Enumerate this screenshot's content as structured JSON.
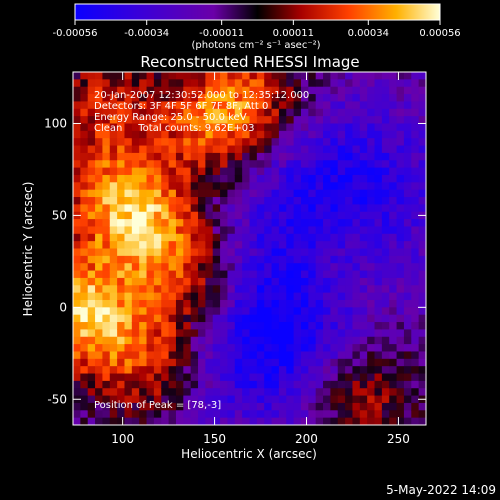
{
  "chart_data": {
    "type": "heatmap",
    "title": "Reconstructed RHESSI Image",
    "xlabel": "Heliocentric X (arcsec)",
    "ylabel": "Heliocentric Y (arcsec)",
    "xlim": [
      73,
      265
    ],
    "ylim": [
      -64,
      128
    ],
    "x_ticks": [
      100,
      150,
      200,
      250
    ],
    "y_ticks": [
      -50,
      0,
      50,
      100
    ],
    "colorbar": {
      "unit": "(photons cm⁻² s⁻¹ asec⁻²)",
      "range": [
        -0.00056,
        0.00056
      ],
      "ticks": [
        "-0.00056",
        "-0.00034",
        "-0.00011",
        "0.00011",
        "0.00034",
        "0.00056"
      ]
    },
    "annotations": {
      "time_range": "20-Jan-2007 12:30:52.000 to 12:35:12.000",
      "detectors": "Detectors: 3F 4F 5F 6F 7F 8F, Att 0",
      "energy": "Energy Range: 25.0 - 50.0 keV",
      "clean": "Clean     Total counts: 9.62E+03",
      "peak": "Position of Peak = [78,-3]"
    },
    "bright_sources": [
      {
        "x": 78,
        "y": -3,
        "value": 0.00056
      },
      {
        "x": 95,
        "y": 60,
        "value": 0.0004
      },
      {
        "x": 120,
        "y": 40,
        "value": 0.00038
      },
      {
        "x": 150,
        "y": 100,
        "value": 0.00042
      },
      {
        "x": 90,
        "y": 110,
        "value": 0.00028
      },
      {
        "x": 175,
        "y": 115,
        "value": 0.0003
      },
      {
        "x": 115,
        "y": -30,
        "value": 0.00035
      },
      {
        "x": 140,
        "y": 10,
        "value": 0.00033
      },
      {
        "x": 230,
        "y": -45,
        "value": 0.0003
      },
      {
        "x": 215,
        "y": 20,
        "value": 0.00018
      }
    ],
    "dim_regions": [
      {
        "x": 190,
        "y": 0,
        "value": -0.0003
      },
      {
        "x": 240,
        "y": 60,
        "value": -0.0002
      },
      {
        "x": 200,
        "y": 75,
        "value": -0.00022
      },
      {
        "x": 170,
        "y": -20,
        "value": -0.00025
      }
    ]
  },
  "footer": {
    "date": "5-May-2022 14:09"
  },
  "colors": {
    "background": "#000000",
    "text": "#ffffff"
  }
}
